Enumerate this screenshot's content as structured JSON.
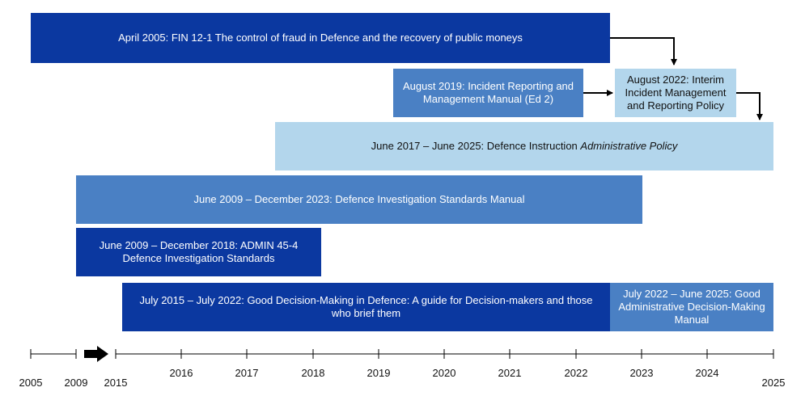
{
  "bars": {
    "fin": "April 2005: FIN 12-1 The control of fraud in Defence and the recovery of public moneys",
    "incident2019": "August 2019: Incident Reporting and Management Manual (Ed 2)",
    "interim2022": "August 2022: Interim Incident Management and Reporting Policy",
    "di_prefix": "June 2017 – June 2025: Defence Instruction ",
    "di_italic": "Administrative Policy",
    "dism": "June 2009 – December 2023: Defence Investigation Standards Manual",
    "admin45": "June 2009 – December 2018: ADMIN 45-4 Defence Investigation Standards",
    "gdm": "July 2015 –  July 2022: Good Decision-Making in Defence: A guide for Decision-makers and those who brief them",
    "gadm": "July 2022 – June 2025: Good Administrative Decision-Making Manual"
  },
  "axis": {
    "years": [
      "2005",
      "2009",
      "2015",
      "2016",
      "2017",
      "2018",
      "2019",
      "2020",
      "2021",
      "2022",
      "2023",
      "2024",
      "2025"
    ]
  },
  "colors": {
    "dark": "#0b38a0",
    "mid": "#4a80c4",
    "light": "#b3d6ec"
  }
}
